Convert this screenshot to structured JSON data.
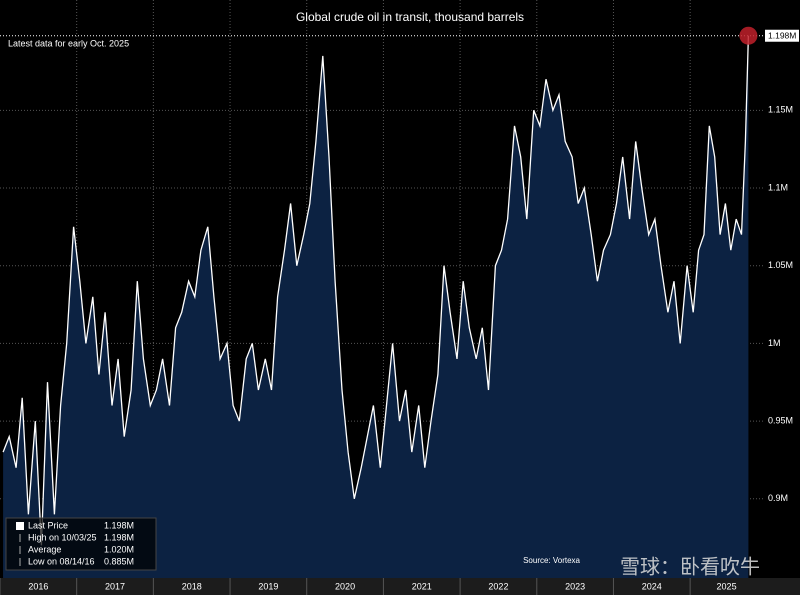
{
  "chart_data": {
    "type": "line",
    "title": "Global crude oil in transit, thousand barrels",
    "subtitle": "Latest data for early Oct. 2025",
    "source": "Source: Vortexa",
    "watermark": "雪球：卧看吹牛",
    "last_label": "1.198M",
    "legend_stats": [
      {
        "label": "Last Price",
        "value": "1.198M"
      },
      {
        "label": "High on 10/03/25",
        "value": "1.198M"
      },
      {
        "label": "Average",
        "value": "1.020M"
      },
      {
        "label": "Low on 08/14/16",
        "value": "0.885M"
      }
    ],
    "x": [
      2016.04,
      2016.12,
      2016.21,
      2016.29,
      2016.37,
      2016.46,
      2016.54,
      2016.62,
      2016.71,
      2016.79,
      2016.87,
      2016.96,
      2017.04,
      2017.12,
      2017.21,
      2017.29,
      2017.37,
      2017.46,
      2017.54,
      2017.62,
      2017.71,
      2017.79,
      2017.87,
      2017.96,
      2018.04,
      2018.12,
      2018.21,
      2018.29,
      2018.37,
      2018.46,
      2018.54,
      2018.62,
      2018.71,
      2018.79,
      2018.87,
      2018.96,
      2019.04,
      2019.12,
      2019.21,
      2019.29,
      2019.37,
      2019.46,
      2019.54,
      2019.62,
      2019.71,
      2019.79,
      2019.87,
      2019.96,
      2020.04,
      2020.12,
      2020.21,
      2020.29,
      2020.37,
      2020.46,
      2020.54,
      2020.62,
      2020.71,
      2020.79,
      2020.87,
      2020.96,
      2021.04,
      2021.12,
      2021.21,
      2021.29,
      2021.37,
      2021.46,
      2021.54,
      2021.62,
      2021.71,
      2021.79,
      2021.87,
      2021.96,
      2022.04,
      2022.12,
      2022.21,
      2022.29,
      2022.37,
      2022.46,
      2022.54,
      2022.62,
      2022.71,
      2022.79,
      2022.87,
      2022.96,
      2023.04,
      2023.12,
      2023.21,
      2023.29,
      2023.37,
      2023.46,
      2023.54,
      2023.62,
      2023.71,
      2023.79,
      2023.87,
      2023.96,
      2024.04,
      2024.12,
      2024.21,
      2024.29,
      2024.37,
      2024.46,
      2024.54,
      2024.62,
      2024.71,
      2024.79,
      2024.87,
      2024.96,
      2025.04,
      2025.11,
      2025.18,
      2025.25,
      2025.32,
      2025.39,
      2025.46,
      2025.53,
      2025.6,
      2025.67,
      2025.72,
      2025.76
    ],
    "series": [
      {
        "name": "Last Price",
        "color": "#ffffff",
        "fill": "#0c2242",
        "values": [
          0.93,
          0.94,
          0.92,
          0.965,
          0.89,
          0.95,
          0.87,
          0.975,
          0.89,
          0.96,
          1.0,
          1.075,
          1.04,
          1.0,
          1.03,
          0.98,
          1.02,
          0.96,
          0.99,
          0.94,
          0.97,
          1.04,
          0.99,
          0.96,
          0.97,
          0.99,
          0.96,
          1.01,
          1.02,
          1.04,
          1.03,
          1.06,
          1.075,
          1.03,
          0.99,
          1.0,
          0.96,
          0.95,
          0.99,
          1.0,
          0.97,
          0.99,
          0.97,
          1.03,
          1.06,
          1.09,
          1.05,
          1.07,
          1.09,
          1.13,
          1.185,
          1.12,
          1.04,
          0.97,
          0.93,
          0.9,
          0.92,
          0.94,
          0.96,
          0.92,
          0.96,
          1.0,
          0.95,
          0.97,
          0.93,
          0.96,
          0.92,
          0.95,
          0.98,
          1.05,
          1.02,
          0.99,
          1.04,
          1.01,
          0.99,
          1.01,
          0.97,
          1.05,
          1.06,
          1.08,
          1.14,
          1.12,
          1.08,
          1.15,
          1.14,
          1.17,
          1.15,
          1.16,
          1.13,
          1.12,
          1.09,
          1.1,
          1.07,
          1.04,
          1.06,
          1.07,
          1.09,
          1.12,
          1.08,
          1.13,
          1.1,
          1.07,
          1.08,
          1.05,
          1.02,
          1.04,
          1.0,
          1.05,
          1.02,
          1.06,
          1.07,
          1.14,
          1.12,
          1.07,
          1.09,
          1.06,
          1.08,
          1.07,
          1.13,
          1.198
        ]
      }
    ],
    "xlim": [
      2016,
      2025.95
    ],
    "xticks": [
      {
        "value": 2016,
        "label": "2016"
      },
      {
        "value": 2017,
        "label": "2017"
      },
      {
        "value": 2018,
        "label": "2018"
      },
      {
        "value": 2019,
        "label": "2019"
      },
      {
        "value": 2020,
        "label": "2020"
      },
      {
        "value": 2021,
        "label": "2021"
      },
      {
        "value": 2022,
        "label": "2022"
      },
      {
        "value": 2023,
        "label": "2023"
      },
      {
        "value": 2024,
        "label": "2024"
      },
      {
        "value": 2025,
        "label": "2025"
      }
    ],
    "ylim": [
      0.849,
      1.221
    ],
    "yticks": [
      {
        "value": 0.9,
        "label": "0.9M"
      },
      {
        "value": 0.95,
        "label": "0.95M"
      },
      {
        "value": 1,
        "label": "1M"
      },
      {
        "value": 1.05,
        "label": "1.05M"
      },
      {
        "value": 1.1,
        "label": "1.1M"
      },
      {
        "value": 1.15,
        "label": "1.15M"
      }
    ],
    "grid": true
  }
}
